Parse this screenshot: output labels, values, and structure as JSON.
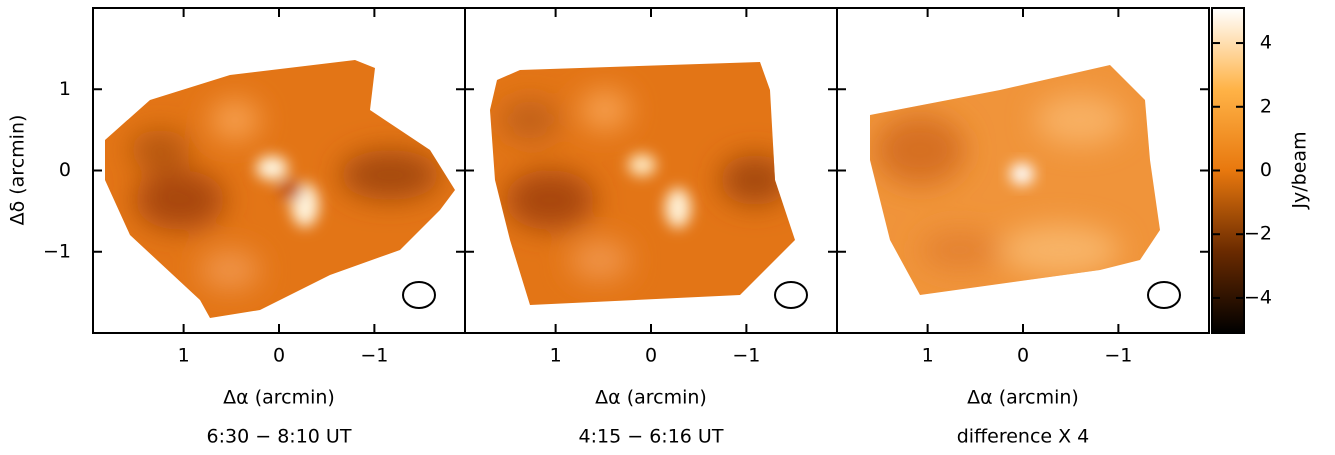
{
  "chart_data": [
    {
      "type": "image",
      "xlabel": "Δα (arcmin)",
      "ylabel": "Δδ (arcmin)",
      "caption": "6:30 − 8:10 UT",
      "xlim": [
        1.95,
        -1.95
      ],
      "xticks": [
        1,
        0,
        {
          "value": -1,
          "label": "−1"
        }
      ],
      "ylim": [
        -2,
        2
      ],
      "yticks": [
        {
          "value": -1,
          "label": "−1"
        },
        0,
        1
      ]
    },
    {
      "type": "image",
      "xlabel": "Δα (arcmin)",
      "caption": "4:15 − 6:16 UT",
      "xlim": [
        1.95,
        -1.95
      ],
      "xticks": [
        1,
        0,
        {
          "value": -1,
          "label": "−1"
        }
      ]
    },
    {
      "type": "image",
      "xlabel": "Δα (arcmin)",
      "caption": "difference X 4",
      "xlim": [
        1.95,
        -1.95
      ],
      "xticks": [
        1,
        0,
        {
          "value": -1,
          "label": "−1"
        }
      ],
      "colorbar": {
        "label": "Jy/beam",
        "lim": [
          -5.1,
          5.1
        ],
        "ticks": [
          {
            "value": -4,
            "label": "−4"
          },
          {
            "value": -2,
            "label": "−2"
          },
          0,
          2,
          4
        ]
      }
    }
  ]
}
